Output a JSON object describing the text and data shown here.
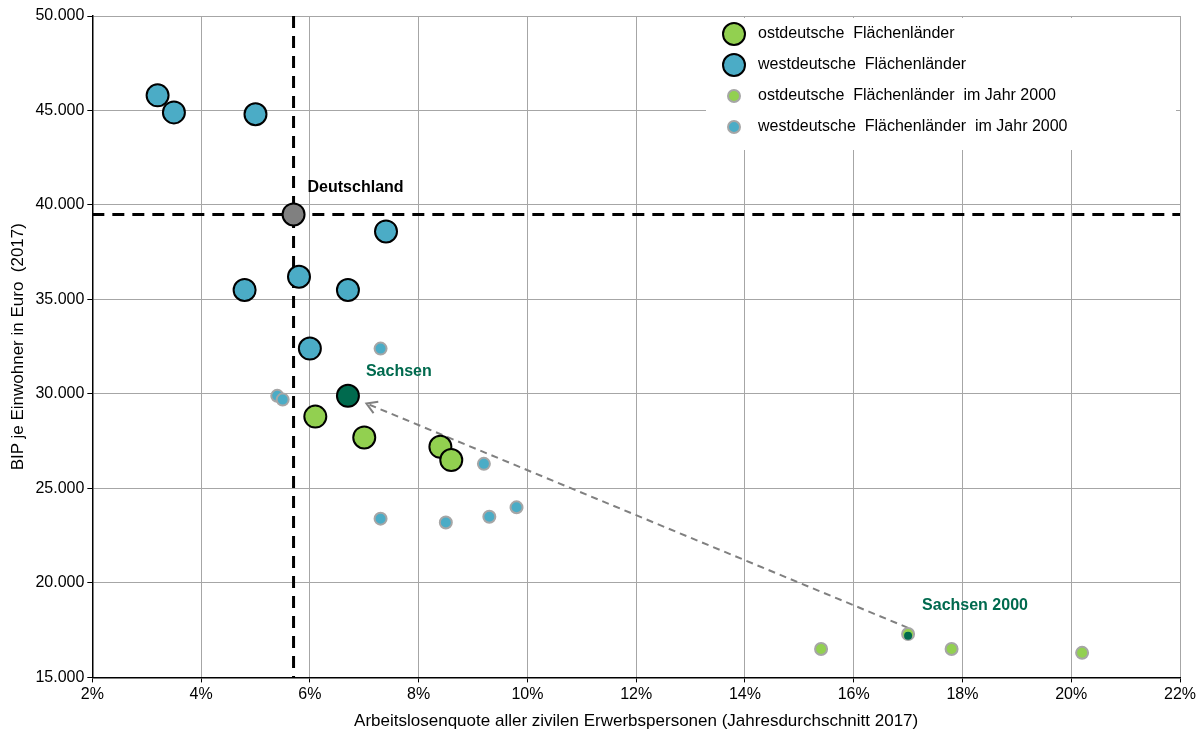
{
  "chart_data": {
    "type": "scatter",
    "xlabel": "Arbeitslosenquote aller zivilen Erwerbspersonen (Jahresdurchschnitt 2017)",
    "ylabel": "BIP je Einwohner in Euro  (2017)",
    "xlim": [
      2,
      22
    ],
    "xticks": [
      {
        "value": 2,
        "label": "2%"
      },
      {
        "value": 4,
        "label": "4%"
      },
      {
        "value": 6,
        "label": "6%"
      },
      {
        "value": 8,
        "label": "8%"
      },
      {
        "value": 10,
        "label": "10%"
      },
      {
        "value": 12,
        "label": "12%"
      },
      {
        "value": 14,
        "label": "14%"
      },
      {
        "value": 16,
        "label": "16%"
      },
      {
        "value": 18,
        "label": "18%"
      },
      {
        "value": 20,
        "label": "20%"
      },
      {
        "value": 22,
        "label": "22%"
      }
    ],
    "ylim": [
      15000,
      50000
    ],
    "yticks": [
      {
        "value": 15000,
        "label": "15.000"
      },
      {
        "value": 20000,
        "label": "20.000"
      },
      {
        "value": 25000,
        "label": "25.000"
      },
      {
        "value": 30000,
        "label": "30.000"
      },
      {
        "value": 35000,
        "label": "35.000"
      },
      {
        "value": 40000,
        "label": "40.000"
      },
      {
        "value": 45000,
        "label": "45.000"
      },
      {
        "value": 50000,
        "label": "50.000"
      }
    ],
    "grid": true,
    "legend": "top right",
    "marker": "circle",
    "series": [
      {
        "name": "ostdeutsche  Flächenländer",
        "color": "#92d050",
        "x": [
          6.1,
          7.0,
          8.4,
          8.6
        ],
        "values": [
          28800,
          27700,
          27200,
          26500
        ]
      },
      {
        "name": "westdeutsche  Flächenländer",
        "color": "#4bacc6",
        "x": [
          3.2,
          3.5,
          5.0,
          7.4,
          5.8,
          4.8,
          6.7,
          6.0
        ],
        "values": [
          45800,
          44900,
          44800,
          38600,
          36200,
          35500,
          35500,
          32400
        ]
      },
      {
        "name": "ostdeutsche  Flächenländer  im Jahr 2000",
        "color": "#92d050",
        "x": [
          15.4,
          17.0,
          17.8,
          20.2
        ],
        "values": [
          16500,
          17300,
          16500,
          16300
        ]
      },
      {
        "name": "westdeutsche  Flächenländer  im Jahr 2000",
        "color": "#4bacc6",
        "x": [
          7.3,
          5.4,
          5.5,
          9.2,
          7.3,
          8.5,
          9.3,
          9.8
        ],
        "values": [
          32400,
          29900,
          29700,
          26300,
          23400,
          23200,
          23500,
          24000
        ]
      },
      {
        "color": "#808080",
        "x": [
          5.7
        ],
        "values": [
          39500
        ]
      },
      {
        "color": "#006a4e",
        "x": [
          6.7
        ],
        "values": [
          29900
        ]
      },
      {
        "color": "#006a4e",
        "x": [
          17.0
        ],
        "values": [
          17200
        ]
      }
    ],
    "ref_lines": [
      {
        "axis": "x",
        "value": 5.7,
        "color": "#000000",
        "line_style": "dashed"
      },
      {
        "axis": "y",
        "value": 39500,
        "color": "#000000",
        "line_style": "dashed"
      }
    ],
    "annotations": [
      {
        "text": "Deutschland",
        "x": 5.7,
        "y": 39500
      },
      {
        "text": "Sachsen",
        "x": 6.7,
        "y": 29900
      },
      {
        "text": "Sachsen 2000",
        "x": 17.0,
        "y": 17200
      }
    ]
  }
}
